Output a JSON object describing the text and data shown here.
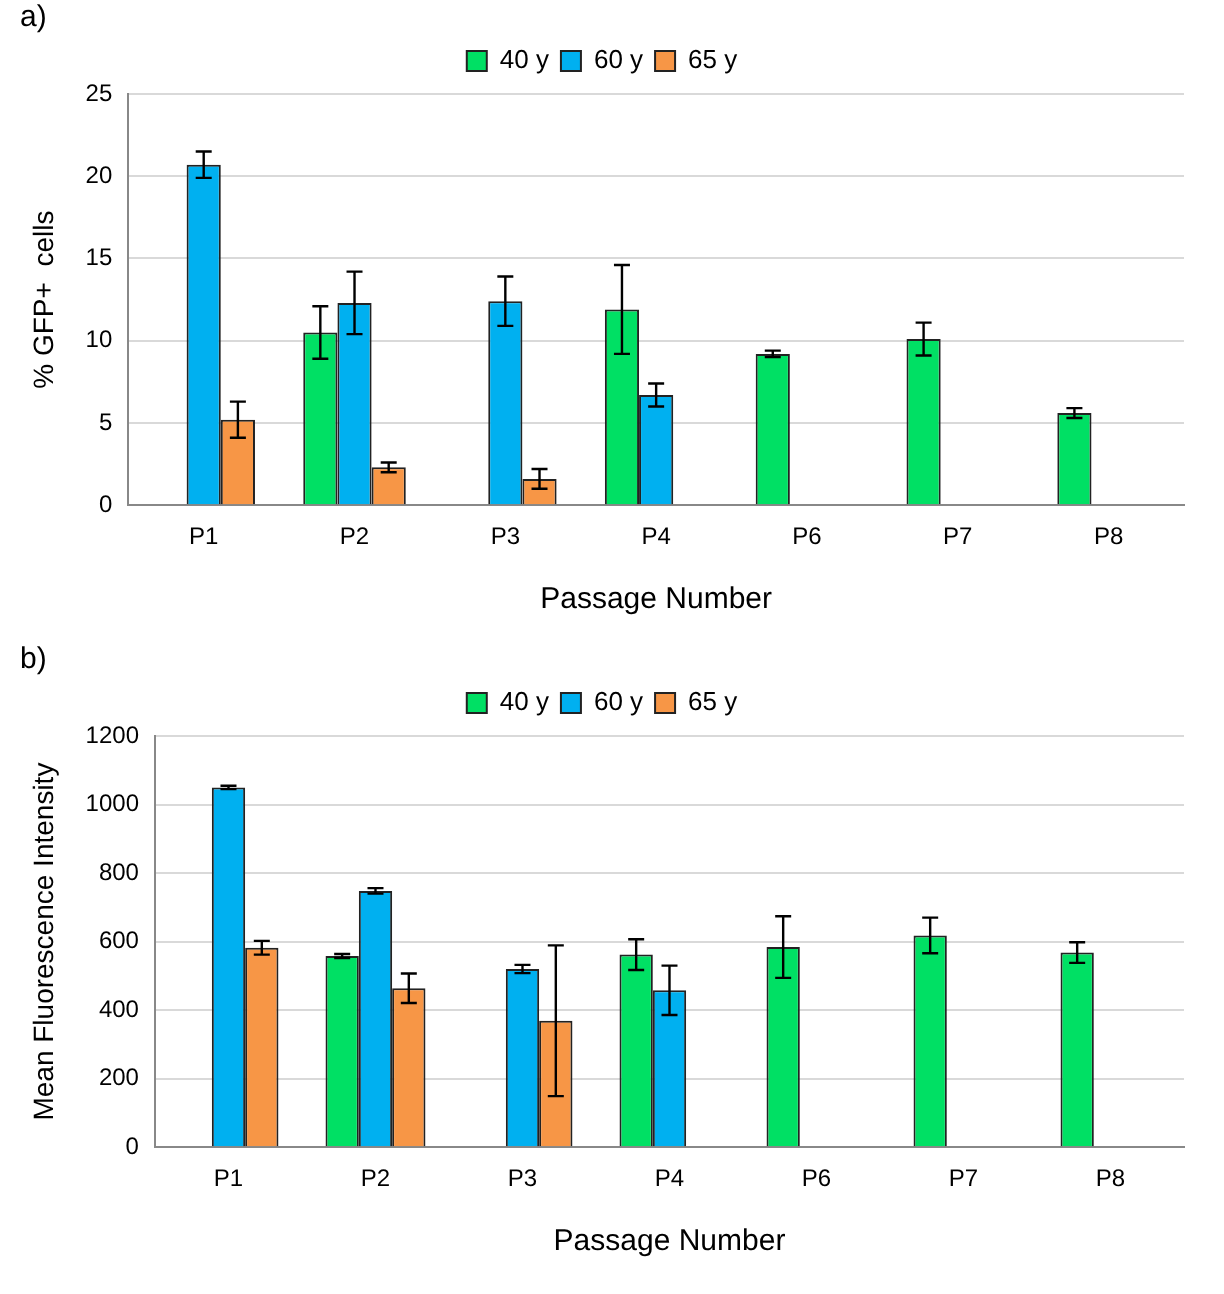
{
  "chart_data": [
    {
      "type": "bar",
      "title": "a)",
      "xlabel": "Passage Number",
      "ylabel": "% GFP+  cells",
      "categories": [
        "P1",
        "P2",
        "P3",
        "P4",
        "P6",
        "P7",
        "P8"
      ],
      "ylim": [
        0,
        25
      ],
      "yticks": [
        0,
        5,
        10,
        15,
        20,
        25
      ],
      "grid": "y",
      "legend": "top",
      "series": [
        {
          "name": "40 y",
          "color": "#00e064",
          "values": [
            null,
            10.5,
            null,
            11.9,
            9.2,
            10.1,
            5.6
          ],
          "errors": [
            null,
            1.6,
            null,
            2.7,
            0.2,
            1.0,
            0.3
          ]
        },
        {
          "name": "60 y",
          "color": "#00b0f0",
          "values": [
            20.7,
            12.3,
            12.4,
            6.7,
            null,
            null,
            null
          ],
          "errors": [
            0.8,
            1.9,
            1.5,
            0.7,
            null,
            null,
            null
          ]
        },
        {
          "name": "65 y",
          "color": "#f79646",
          "values": [
            5.2,
            2.3,
            1.6,
            null,
            null,
            null,
            null
          ],
          "errors": [
            1.1,
            0.3,
            0.6,
            null,
            null,
            null,
            null
          ]
        }
      ]
    },
    {
      "type": "bar",
      "title": "b)",
      "xlabel": "Passage Number",
      "ylabel": "Mean Fluorescence Intensity",
      "categories": [
        "P1",
        "P2",
        "P3",
        "P4",
        "P6",
        "P7",
        "P8"
      ],
      "ylim": [
        0,
        1200
      ],
      "yticks": [
        0,
        200,
        400,
        600,
        800,
        1000,
        1200
      ],
      "grid": "y",
      "legend": "top",
      "series": [
        {
          "name": "40 y",
          "color": "#00e064",
          "values": [
            null,
            558,
            null,
            562,
            584,
            618,
            568
          ],
          "errors": [
            null,
            6,
            null,
            45,
            90,
            52,
            30
          ]
        },
        {
          "name": "60 y",
          "color": "#00b0f0",
          "values": [
            1050,
            748,
            520,
            458,
            null,
            null,
            null
          ],
          "errors": [
            5,
            8,
            12,
            72,
            null,
            null,
            null
          ]
        },
        {
          "name": "65 y",
          "color": "#f79646",
          "values": [
            582,
            464,
            369,
            null,
            null,
            null,
            null
          ],
          "errors": [
            20,
            43,
            220,
            null,
            null,
            null,
            null
          ]
        }
      ]
    }
  ]
}
